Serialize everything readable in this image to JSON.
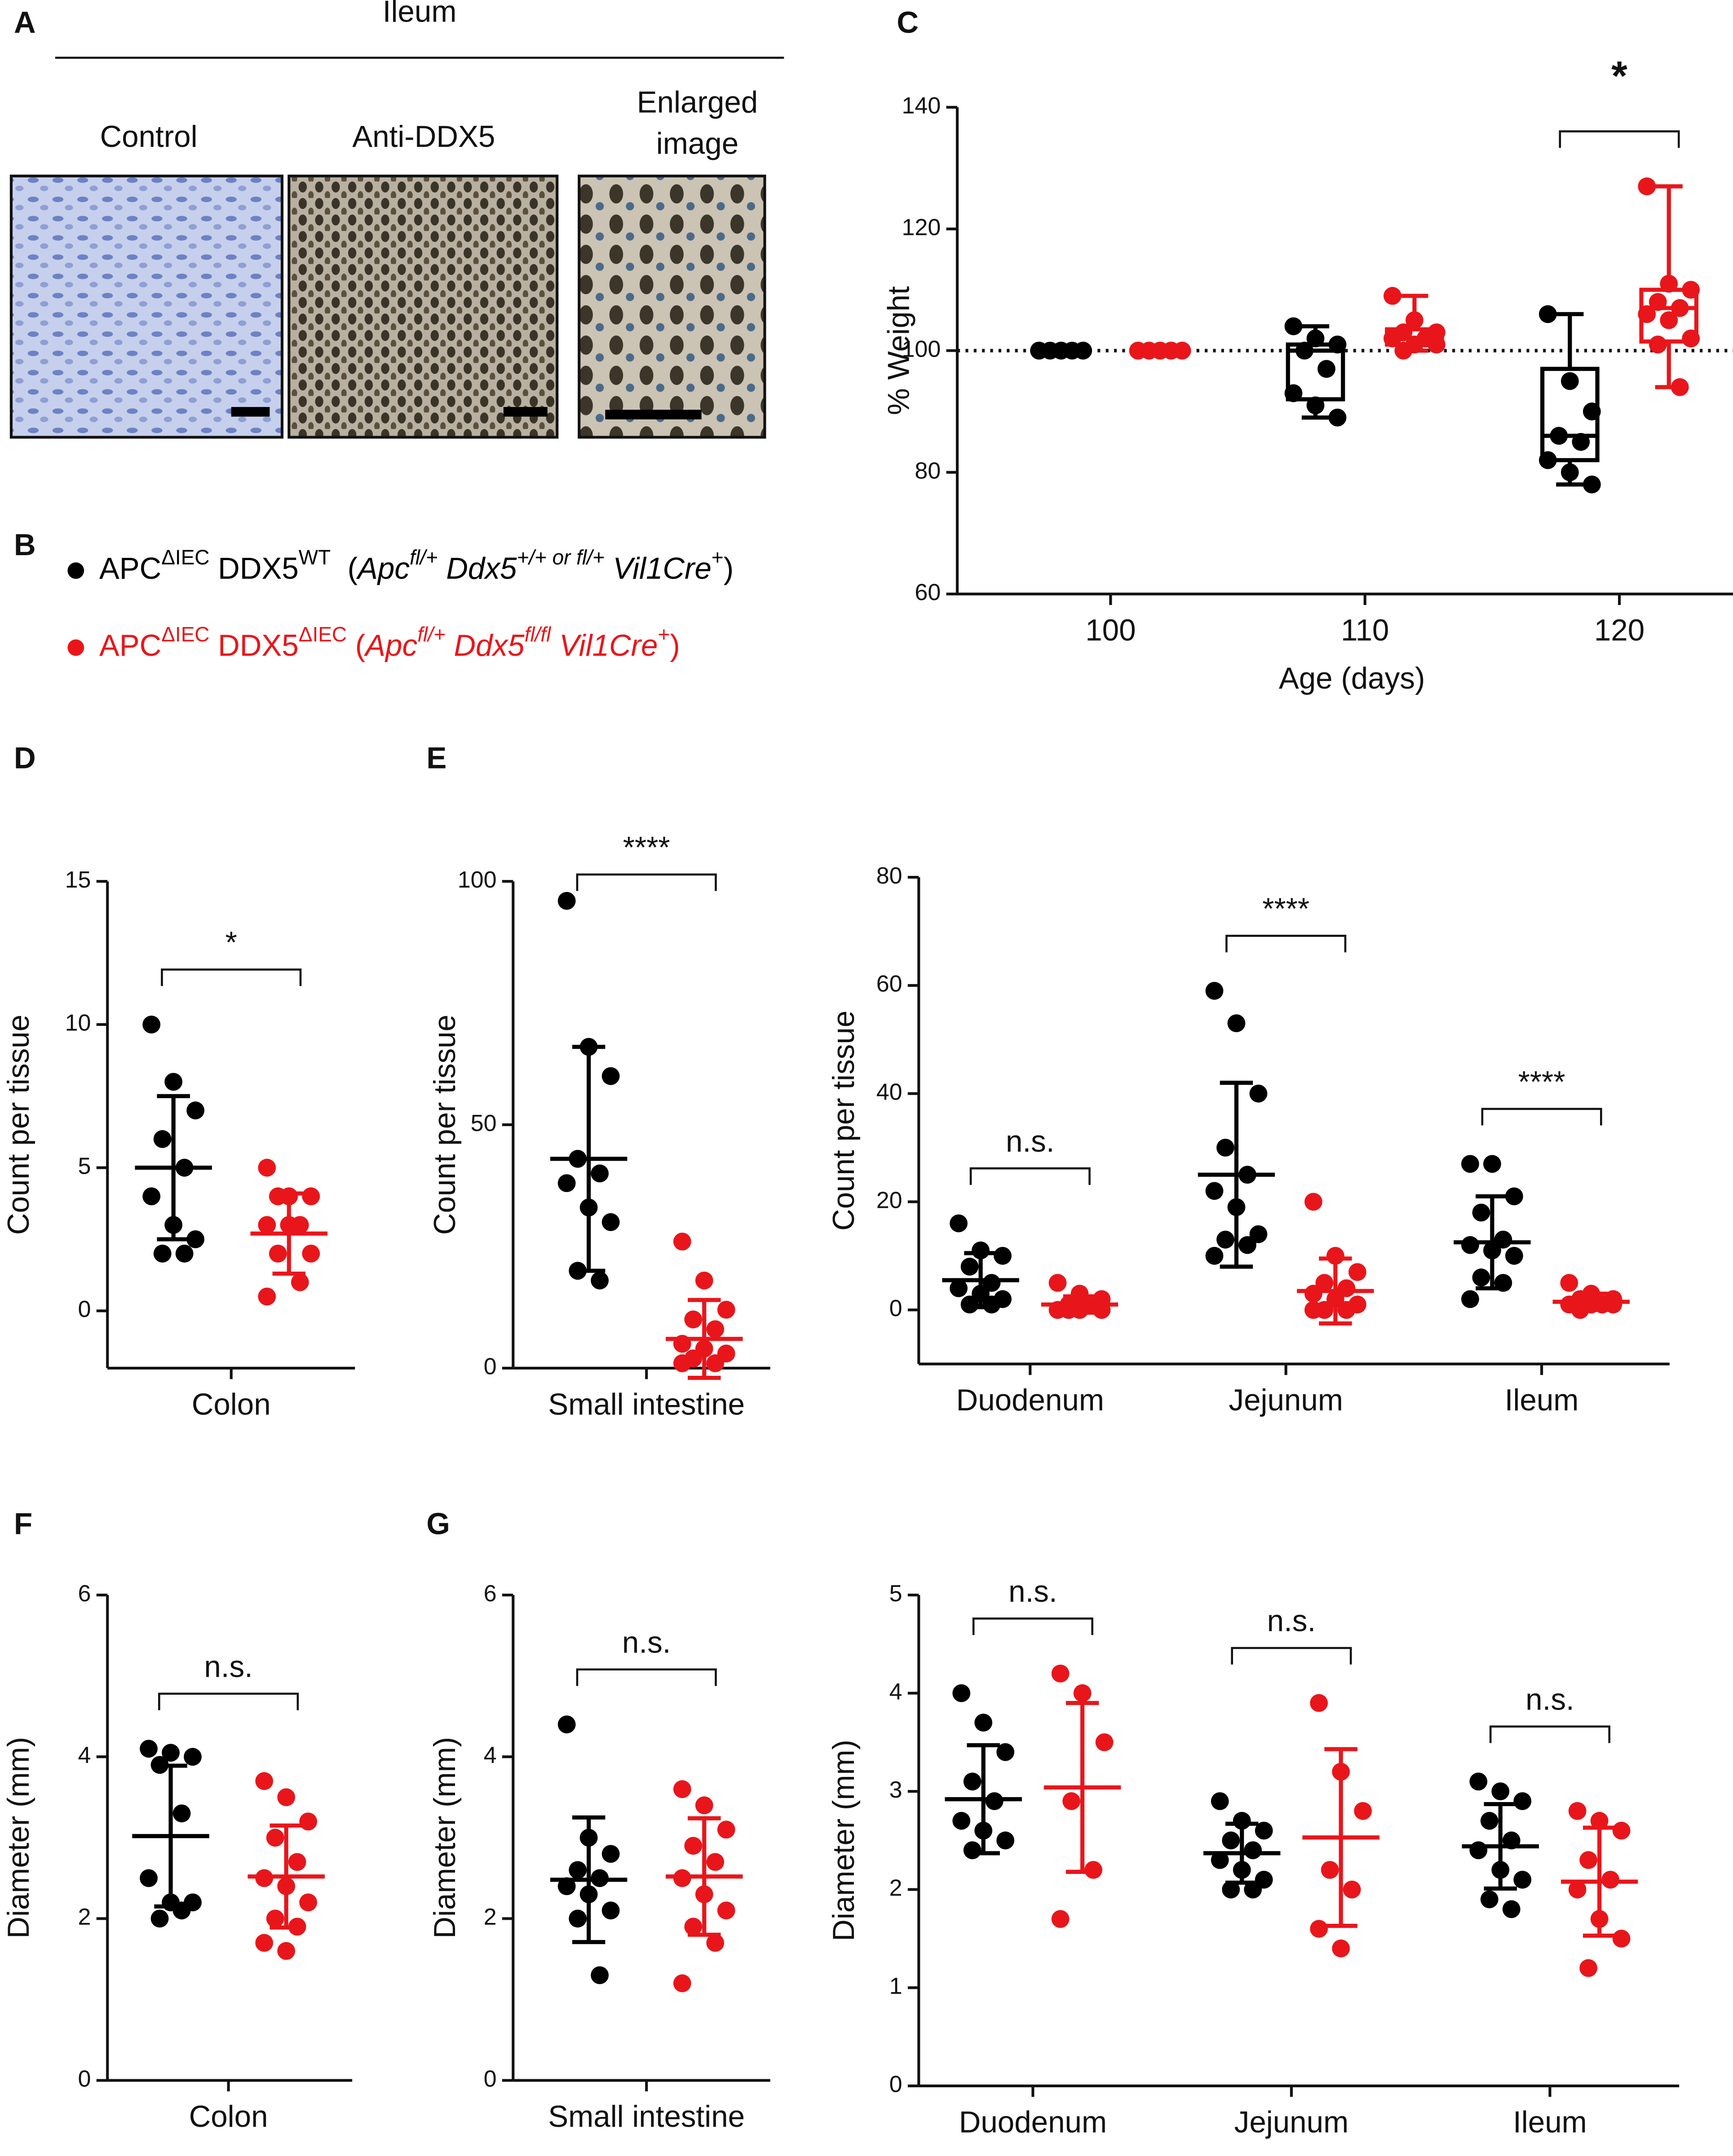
{
  "panels": [
    "A",
    "B",
    "C",
    "D",
    "E",
    "F",
    "G"
  ],
  "panel_a": {
    "title": "Ileum",
    "labels": [
      [
        "Control"
      ],
      [
        "Anti-DDX5"
      ],
      [
        "Enlarged",
        "image"
      ]
    ]
  },
  "legend": [
    {
      "color": "#000000",
      "text": [
        {
          "text": "APC"
        },
        {
          "text": "ΔIEC",
          "style": "sup"
        },
        {
          "text": " DDX5"
        },
        {
          "text": "WT",
          "style": "sup"
        },
        {
          "text": "  ("
        },
        {
          "text": "Apc",
          "style": "i"
        },
        {
          "text": "fl/+",
          "style": "isup"
        },
        {
          "text": " Ddx5",
          "style": "i"
        },
        {
          "text": "+/+ or fl/+",
          "style": "isup"
        },
        {
          "text": " Vil1Cre",
          "style": "i"
        },
        {
          "text": "+",
          "style": "sup"
        },
        {
          "text": ")"
        }
      ]
    },
    {
      "color": "#e8161b",
      "text": [
        {
          "text": "APC"
        },
        {
          "text": "ΔIEC",
          "style": "sup"
        },
        {
          "text": " DDX5"
        },
        {
          "text": "ΔIEC",
          "style": "sup"
        },
        {
          "text": " ("
        },
        {
          "text": "Apc",
          "style": "i"
        },
        {
          "text": "fl/+",
          "style": "isup"
        },
        {
          "text": " Ddx5",
          "style": "i"
        },
        {
          "text": "fl/fl",
          "style": "isup"
        },
        {
          "text": " Vil1Cre",
          "style": "i"
        },
        {
          "text": "+",
          "style": "sup"
        },
        {
          "text": ")"
        }
      ]
    }
  ],
  "chart_data": [
    {
      "type": "box",
      "ylabel": "% Weight",
      "xlabel": "Age (days)",
      "categories": [
        "100",
        "110",
        "120"
      ],
      "ylim": [
        60,
        140
      ],
      "yticks": [
        60,
        80,
        100,
        120,
        140
      ],
      "refline": 100,
      "significance": [
        null,
        null,
        "*"
      ],
      "series": [
        {
          "color": "#000000",
          "values": [
            {
              "min": 100,
              "q1": 100,
              "median": 100,
              "q3": 100,
              "max": 100,
              "points": [
                100,
                100,
                100,
                100,
                100,
                100,
                100,
                100
              ]
            },
            {
              "min": 89,
              "q1": 92,
              "median": 100,
              "q3": 101,
              "max": 104,
              "points": [
                104,
                102,
                101,
                100,
                97,
                93,
                91,
                89
              ]
            },
            {
              "min": 78,
              "q1": 82,
              "median": 86,
              "q3": 97,
              "max": 106,
              "points": [
                106,
                95,
                90,
                86,
                85,
                82,
                80,
                78
              ]
            }
          ]
        },
        {
          "color": "#e8161b",
          "values": [
            {
              "min": 100,
              "q1": 100,
              "median": 100,
              "q3": 100,
              "max": 100,
              "points": [
                100,
                100,
                100,
                100,
                100,
                100,
                100,
                100,
                100,
                100
              ]
            },
            {
              "min": 100,
              "q1": 101,
              "median": 102,
              "q3": 103.5,
              "max": 109,
              "points": [
                109,
                105,
                103,
                103,
                102,
                102,
                101,
                101,
                100
              ]
            },
            {
              "min": 94,
              "q1": 101.5,
              "median": 107,
              "q3": 110,
              "max": 127,
              "points": [
                127,
                111,
                110,
                108,
                107,
                106,
                105,
                102,
                101,
                94
              ]
            }
          ]
        }
      ]
    },
    {
      "type": "dot",
      "ylabel": "Count per tissue",
      "categories": [
        "Colon"
      ],
      "ylim": [
        -2,
        15
      ],
      "yticks": [
        0,
        5,
        10,
        15
      ],
      "significance": [
        "*"
      ],
      "series": [
        {
          "color": "#000000",
          "values": [
            {
              "points": [
                10,
                8,
                7,
                6,
                5,
                4,
                3,
                2.5,
                2,
                2
              ],
              "mean": 5,
              "sd": 2.5
            }
          ]
        },
        {
          "color": "#e8161b",
          "values": [
            {
              "points": [
                5,
                4,
                4,
                4,
                3,
                3,
                3,
                2,
                2,
                1,
                0.5
              ],
              "mean": 2.7,
              "sd": 1.4
            }
          ]
        }
      ]
    },
    {
      "type": "dot",
      "ylabel": "Count per tissue",
      "categories": [
        "Small intestine"
      ],
      "ylim": [
        0,
        100
      ],
      "yticks": [
        0,
        50,
        100
      ],
      "significance": [
        "****"
      ],
      "series": [
        {
          "color": "#000000",
          "values": [
            {
              "points": [
                96,
                66,
                60,
                43,
                40,
                38,
                33,
                30,
                20,
                18
              ],
              "mean": 43,
              "sd": 23
            }
          ]
        },
        {
          "color": "#e8161b",
          "values": [
            {
              "points": [
                26,
                18,
                12,
                10,
                8,
                5,
                4,
                3,
                2,
                1,
                1
              ],
              "mean": 6,
              "sd": 8
            }
          ]
        }
      ]
    },
    {
      "type": "dot",
      "ylabel": "Count per tissue",
      "categories": [
        "Duodenum",
        "Jejunum",
        "Ileum"
      ],
      "ylim": [
        -10,
        80
      ],
      "yticks": [
        0,
        20,
        40,
        60,
        80
      ],
      "significance": [
        "n.s.",
        "****",
        "****"
      ],
      "series": [
        {
          "color": "#000000",
          "values": [
            {
              "points": [
                16,
                11,
                10,
                8,
                5,
                4,
                3,
                2,
                1,
                1
              ],
              "mean": 5.5,
              "sd": 5
            },
            {
              "points": [
                59,
                53,
                40,
                30,
                25,
                22,
                19,
                14,
                13,
                12,
                10
              ],
              "mean": 25,
              "sd": 17
            },
            {
              "points": [
                27,
                27,
                21,
                18,
                13,
                12,
                11,
                10,
                6,
                5,
                2
              ],
              "mean": 12.5,
              "sd": 8.5
            }
          ]
        },
        {
          "color": "#e8161b",
          "values": [
            {
              "points": [
                5,
                3,
                2,
                1,
                1,
                0,
                0,
                0,
                0
              ],
              "mean": 1,
              "sd": 1.5
            },
            {
              "points": [
                20,
                10,
                7,
                5,
                4,
                3,
                2,
                1,
                0,
                0,
                0
              ],
              "mean": 3.5,
              "sd": 6
            },
            {
              "points": [
                5,
                3,
                2,
                2,
                1,
                1,
                1,
                1,
                0
              ],
              "mean": 1.5,
              "sd": 1.5
            }
          ]
        }
      ]
    },
    {
      "type": "dot",
      "ylabel": "Diameter (mm)",
      "categories": [
        "Colon"
      ],
      "ylim": [
        0,
        6
      ],
      "yticks": [
        0,
        2,
        4,
        6
      ],
      "significance": [
        "n.s."
      ],
      "series": [
        {
          "color": "#000000",
          "values": [
            {
              "points": [
                4.1,
                4.05,
                4,
                3.9,
                3.3,
                2.5,
                2.2,
                2.2,
                2,
                2.1
              ],
              "mean": 3.02,
              "sd": 0.87
            }
          ]
        },
        {
          "color": "#e8161b",
          "values": [
            {
              "points": [
                3.7,
                3.5,
                3.2,
                3,
                2.7,
                2.5,
                2.4,
                2.2,
                2,
                1.9,
                1.7,
                1.6
              ],
              "mean": 2.52,
              "sd": 0.63
            }
          ]
        }
      ]
    },
    {
      "type": "dot",
      "ylabel": "Diameter (mm)",
      "categories": [
        "Small intestine"
      ],
      "ylim": [
        0,
        6
      ],
      "yticks": [
        0,
        2,
        4,
        6
      ],
      "significance": [
        "n.s."
      ],
      "series": [
        {
          "color": "#000000",
          "values": [
            {
              "points": [
                4.4,
                3,
                2.8,
                2.6,
                2.5,
                2.4,
                2.3,
                2.1,
                2,
                1.3
              ],
              "mean": 2.48,
              "sd": 0.77
            }
          ]
        },
        {
          "color": "#e8161b",
          "values": [
            {
              "points": [
                3.6,
                3.4,
                3.1,
                2.9,
                2.7,
                2.5,
                2.3,
                2.1,
                1.9,
                1.7,
                1.2
              ],
              "mean": 2.52,
              "sd": 0.72
            }
          ]
        }
      ]
    },
    {
      "type": "dot",
      "ylabel": "Diameter (mm)",
      "categories": [
        "Duodenum",
        "Jejunum",
        "Ileum"
      ],
      "ylim": [
        0,
        5
      ],
      "yticks": [
        0,
        1,
        2,
        3,
        4,
        5
      ],
      "significance": [
        "n.s.",
        "n.s.",
        "n.s."
      ],
      "series": [
        {
          "color": "#000000",
          "values": [
            {
              "points": [
                4,
                3.7,
                3.4,
                3.1,
                2.9,
                2.7,
                2.6,
                2.5,
                2.4
              ],
              "mean": 2.92,
              "sd": 0.55
            },
            {
              "points": [
                2.9,
                2.7,
                2.6,
                2.5,
                2.4,
                2.3,
                2.2,
                2.1,
                2,
                2
              ],
              "mean": 2.37,
              "sd": 0.3
            },
            {
              "points": [
                3.1,
                3,
                2.9,
                2.7,
                2.5,
                2.4,
                2.2,
                2.1,
                1.9,
                1.8
              ],
              "mean": 2.44,
              "sd": 0.43
            }
          ]
        },
        {
          "color": "#e8161b",
          "values": [
            {
              "points": [
                4.2,
                4,
                3.5,
                2.9,
                2.2,
                1.7
              ],
              "mean": 3.04,
              "sd": 0.86
            },
            {
              "points": [
                3.9,
                3.2,
                2.8,
                2.2,
                2,
                1.6,
                1.4
              ],
              "mean": 2.53,
              "sd": 0.9
            },
            {
              "points": [
                2.8,
                2.7,
                2.6,
                2.3,
                2.1,
                2,
                1.7,
                1.5,
                1.2
              ],
              "mean": 2.08,
              "sd": 0.55
            }
          ]
        }
      ]
    }
  ]
}
